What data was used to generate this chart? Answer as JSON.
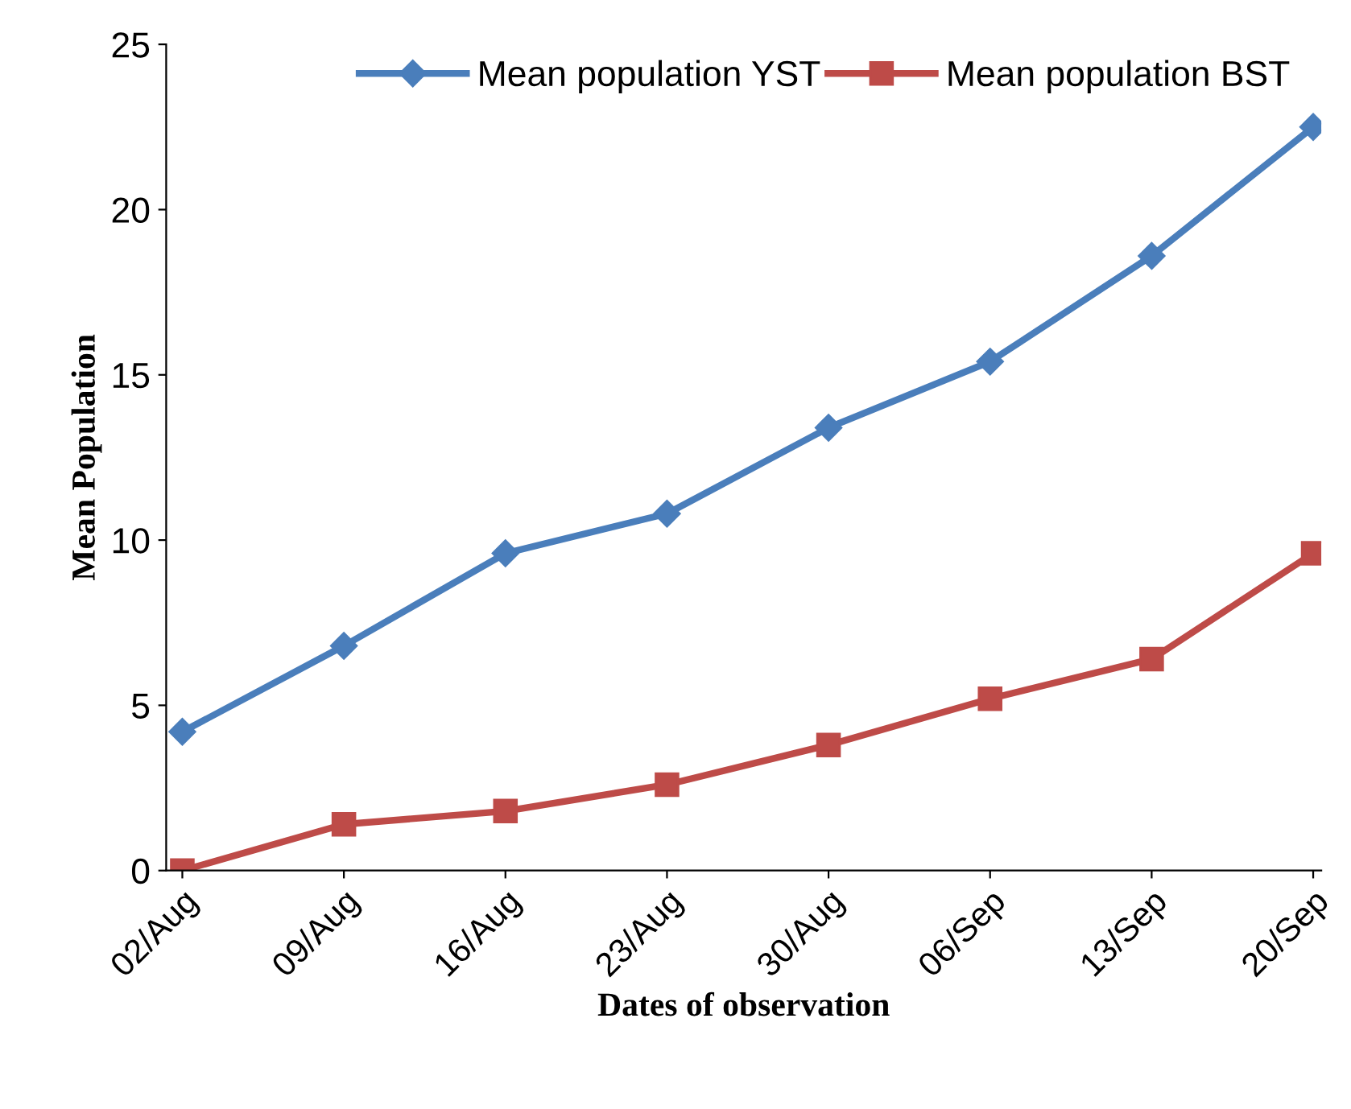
{
  "chart_data": {
    "type": "line",
    "xlabel": "Dates of observation",
    "ylabel": "Mean Population",
    "categories": [
      "02/Aug",
      "09/Aug",
      "16/Aug",
      "23/Aug",
      "30/Aug",
      "06/Sep",
      "13/Sep",
      "20/Sep"
    ],
    "series": [
      {
        "name": "Mean population YST",
        "color": "#4a7ebb",
        "marker": "diamond",
        "values": [
          4.2,
          6.8,
          9.6,
          10.8,
          13.4,
          15.4,
          18.6,
          22.5
        ]
      },
      {
        "name": "Mean population BST",
        "color": "#be4b48",
        "marker": "square",
        "values": [
          0,
          1.4,
          1.8,
          2.6,
          3.8,
          5.2,
          6.4,
          9.6
        ]
      }
    ],
    "ylim": [
      0,
      25
    ],
    "yticks": [
      0,
      5,
      10,
      15,
      20,
      25
    ],
    "grid": false,
    "legend": "top",
    "line_style": "solid"
  }
}
